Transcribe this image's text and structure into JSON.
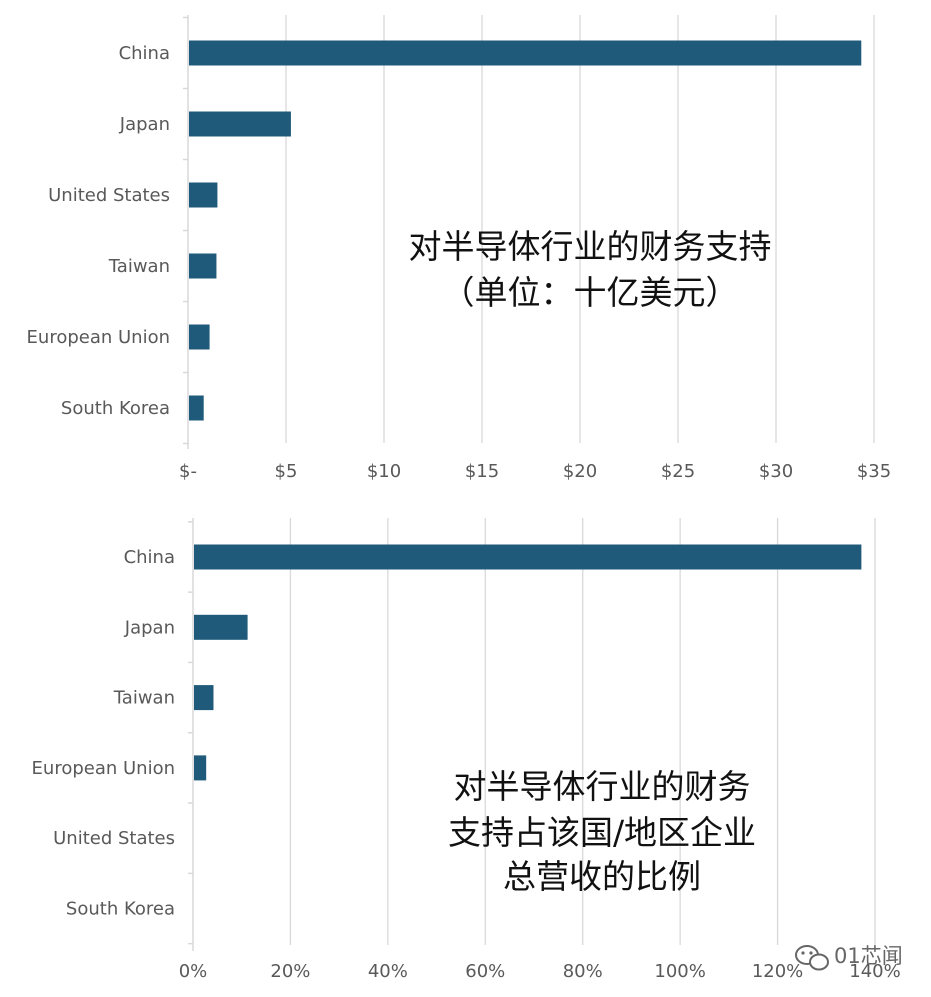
{
  "chart_data": [
    {
      "type": "bar",
      "orientation": "horizontal",
      "title": [
        "对半导体行业的财务支持",
        "（单位：十亿美元）"
      ],
      "categories": [
        "China",
        "Japan",
        "United States",
        "Taiwan",
        "European Union",
        "South Korea"
      ],
      "values": [
        34.3,
        5.2,
        1.45,
        1.4,
        1.05,
        0.75
      ],
      "xlim": [
        0,
        35
      ],
      "xticks": [
        0,
        5,
        10,
        15,
        20,
        25,
        30,
        35
      ],
      "xtick_labels": [
        "$-",
        "$5",
        "$10",
        "$15",
        "$20",
        "$25",
        "$30",
        "$35"
      ],
      "bar_color": "#1f5a7a",
      "grid": true,
      "legend": "none"
    },
    {
      "type": "bar",
      "orientation": "horizontal",
      "title": [
        "对半导体行业的财务",
        "支持占该国/地区企业",
        "总营收的比例"
      ],
      "categories": [
        "China",
        "Japan",
        "Taiwan",
        "European Union",
        "United States",
        "South Korea"
      ],
      "values": [
        137,
        11,
        4,
        2.5,
        0,
        0
      ],
      "value_unit": "%",
      "xlim": [
        0,
        140
      ],
      "xticks": [
        0,
        20,
        40,
        60,
        80,
        100,
        120,
        140
      ],
      "xtick_labels": [
        "0%",
        "20%",
        "40%",
        "60%",
        "80%",
        "100%",
        "120%",
        "140%"
      ],
      "bar_color": "#1f5a7a",
      "grid": true,
      "legend": "none"
    }
  ],
  "watermark": {
    "text": "01芯闻",
    "icon": "wechat-icon"
  }
}
